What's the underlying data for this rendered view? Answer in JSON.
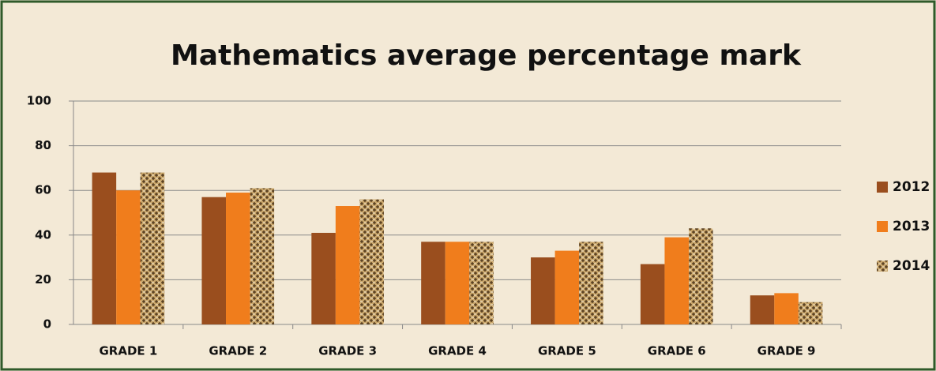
{
  "chart_data": {
    "type": "bar",
    "title": "Mathematics average percentage mark",
    "categories": [
      "GRADE 1",
      "GRADE 2",
      "GRADE 3",
      "GRADE 4",
      "GRADE 5",
      "GRADE 6",
      "GRADE 9"
    ],
    "series": [
      {
        "name": "2012",
        "color": "#9a4e1e",
        "values": [
          68,
          57,
          41,
          37,
          30,
          27,
          13
        ]
      },
      {
        "name": "2013",
        "color": "#f07d1c",
        "values": [
          60,
          59,
          53,
          37,
          33,
          39,
          14
        ]
      },
      {
        "name": "2014",
        "color": "#c9a66b",
        "pattern": true,
        "values": [
          68,
          61,
          56,
          37,
          37,
          43,
          10
        ]
      }
    ],
    "ylim": [
      0,
      100
    ],
    "yticks": [
      0,
      20,
      40,
      60,
      80,
      100
    ],
    "grid": true,
    "legend": "right"
  }
}
